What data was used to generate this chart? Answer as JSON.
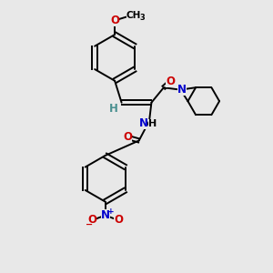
{
  "bg_color": "#e8e8e8",
  "bond_color": "#000000",
  "atom_colors": {
    "O": "#cc0000",
    "N": "#0000cc",
    "H": "#4a9090",
    "C": "#000000"
  },
  "font_size_atom": 8.5,
  "font_size_small": 7.0,
  "figsize": [
    3.0,
    3.0
  ],
  "dpi": 100
}
